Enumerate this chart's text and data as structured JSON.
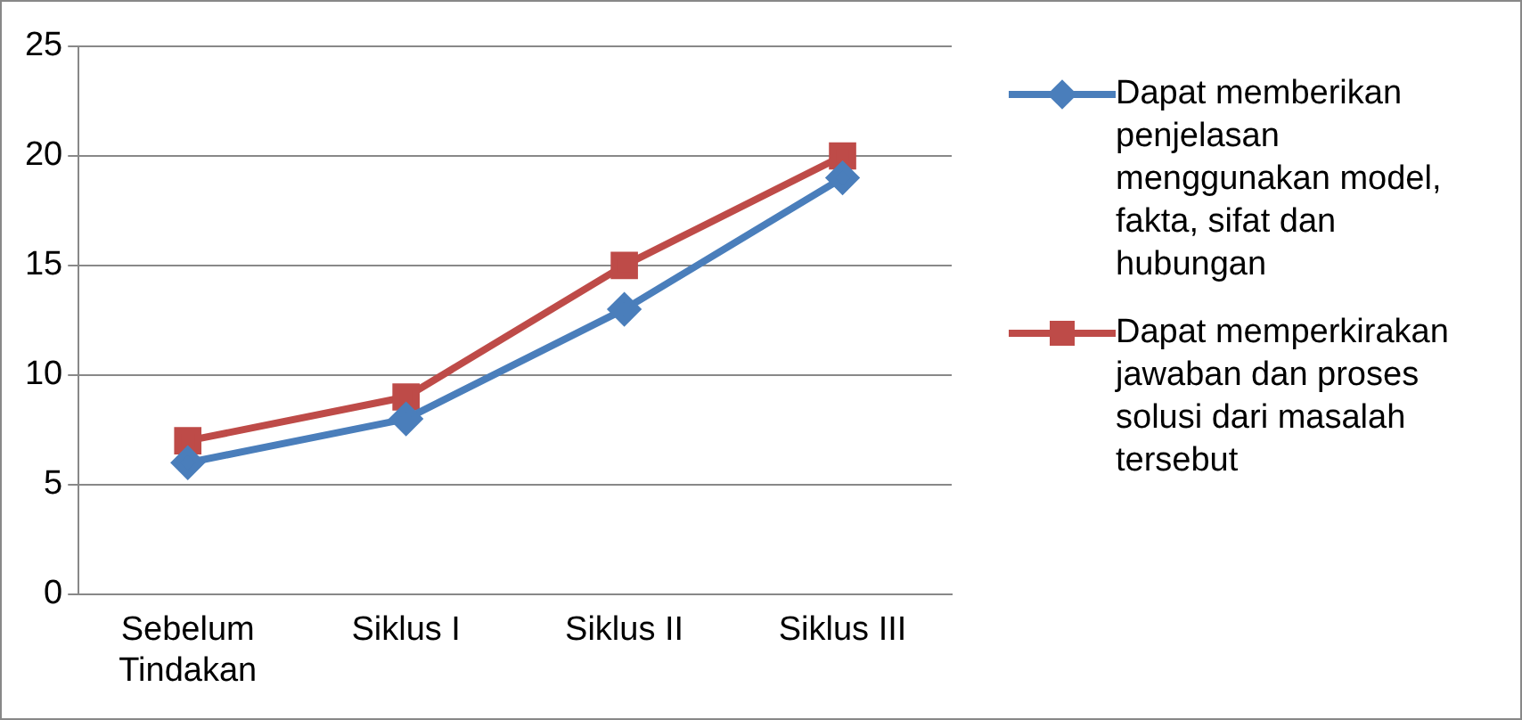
{
  "chart_data": {
    "type": "line",
    "categories": [
      "Sebelum Tindakan",
      "Siklus I",
      "Siklus II",
      "Siklus III"
    ],
    "series": [
      {
        "name": "Dapat memberikan penjelasan menggunakan model, fakta, sifat dan hubungan",
        "color": "#4a7ebb",
        "marker": "diamond",
        "values": [
          6,
          8,
          13,
          19
        ]
      },
      {
        "name": "Dapat memperkirakan jawaban dan proses solusi dari masalah tersebut",
        "color": "#be4b48",
        "marker": "square",
        "values": [
          7,
          9,
          15,
          20
        ]
      }
    ],
    "ylim": [
      0,
      25
    ],
    "yticks": [
      0,
      5,
      10,
      15,
      20,
      25
    ],
    "grid": "y",
    "legend": "right"
  }
}
